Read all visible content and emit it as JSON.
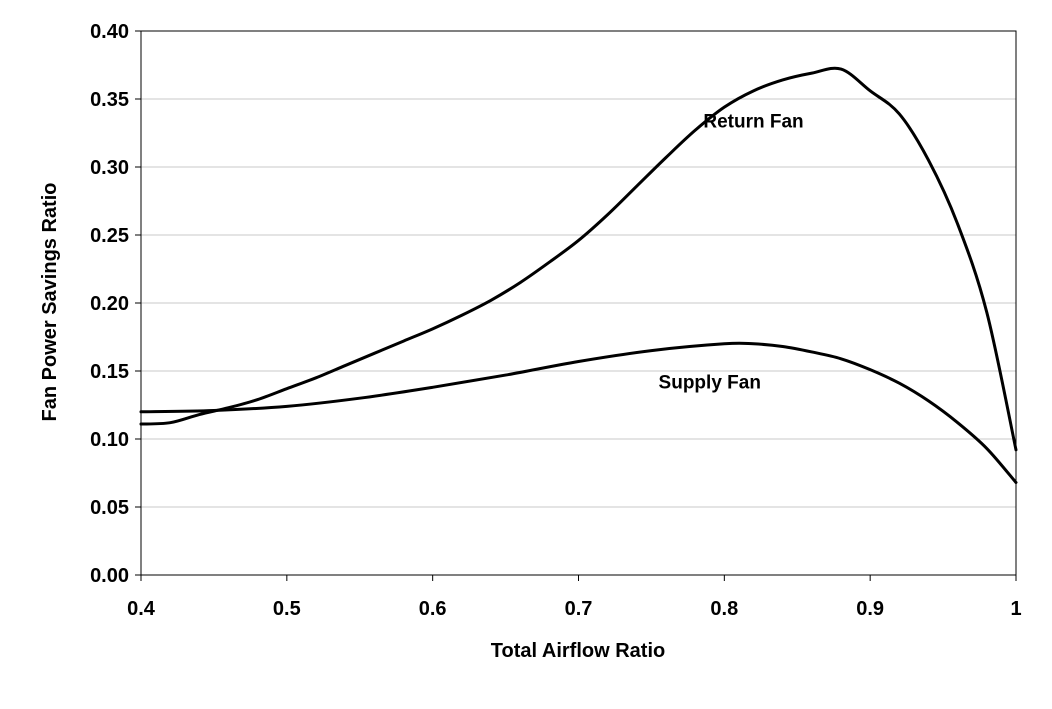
{
  "chart_data": {
    "type": "line",
    "title": "",
    "xlabel": "Total Airflow Ratio",
    "ylabel": "Fan Power Savings Ratio",
    "xlim": [
      0.4,
      1.0
    ],
    "ylim": [
      0.0,
      0.4
    ],
    "grid": true,
    "legend": "none",
    "x_ticks": [
      {
        "value": 0.4,
        "label": "0.4"
      },
      {
        "value": 0.5,
        "label": "0.5"
      },
      {
        "value": 0.6,
        "label": "0.6"
      },
      {
        "value": 0.7,
        "label": "0.7"
      },
      {
        "value": 0.8,
        "label": "0.8"
      },
      {
        "value": 0.9,
        "label": "0.9"
      },
      {
        "value": 1.0,
        "label": "1"
      }
    ],
    "y_ticks": [
      {
        "value": 0.0,
        "label": "0.00"
      },
      {
        "value": 0.05,
        "label": "0.05"
      },
      {
        "value": 0.1,
        "label": "0.10"
      },
      {
        "value": 0.15,
        "label": "0.15"
      },
      {
        "value": 0.2,
        "label": "0.20"
      },
      {
        "value": 0.25,
        "label": "0.25"
      },
      {
        "value": 0.3,
        "label": "0.30"
      },
      {
        "value": 0.35,
        "label": "0.35"
      },
      {
        "value": 0.4,
        "label": "0.40"
      }
    ],
    "series": [
      {
        "name": "Return Fan",
        "color": "#000000",
        "points": [
          [
            0.4,
            0.111
          ],
          [
            0.42,
            0.112
          ],
          [
            0.44,
            0.118
          ],
          [
            0.46,
            0.123
          ],
          [
            0.48,
            0.129
          ],
          [
            0.5,
            0.137
          ],
          [
            0.52,
            0.145
          ],
          [
            0.54,
            0.154
          ],
          [
            0.56,
            0.163
          ],
          [
            0.58,
            0.172
          ],
          [
            0.6,
            0.181
          ],
          [
            0.62,
            0.191
          ],
          [
            0.64,
            0.202
          ],
          [
            0.66,
            0.215
          ],
          [
            0.68,
            0.23
          ],
          [
            0.7,
            0.246
          ],
          [
            0.72,
            0.265
          ],
          [
            0.74,
            0.286
          ],
          [
            0.76,
            0.307
          ],
          [
            0.78,
            0.327
          ],
          [
            0.8,
            0.344
          ],
          [
            0.82,
            0.356
          ],
          [
            0.84,
            0.364
          ],
          [
            0.86,
            0.369
          ],
          [
            0.88,
            0.372
          ],
          [
            0.9,
            0.356
          ],
          [
            0.92,
            0.339
          ],
          [
            0.94,
            0.305
          ],
          [
            0.96,
            0.258
          ],
          [
            0.98,
            0.193
          ],
          [
            1.0,
            0.092
          ]
        ]
      },
      {
        "name": "Supply Fan",
        "color": "#000000",
        "points": [
          [
            0.4,
            0.12
          ],
          [
            0.45,
            0.121
          ],
          [
            0.5,
            0.124
          ],
          [
            0.55,
            0.13
          ],
          [
            0.6,
            0.138
          ],
          [
            0.65,
            0.147
          ],
          [
            0.7,
            0.157
          ],
          [
            0.75,
            0.165
          ],
          [
            0.8,
            0.17
          ],
          [
            0.82,
            0.17
          ],
          [
            0.84,
            0.168
          ],
          [
            0.86,
            0.164
          ],
          [
            0.88,
            0.159
          ],
          [
            0.9,
            0.151
          ],
          [
            0.92,
            0.141
          ],
          [
            0.94,
            0.128
          ],
          [
            0.96,
            0.112
          ],
          [
            0.98,
            0.093
          ],
          [
            1.0,
            0.068
          ]
        ]
      }
    ],
    "annotations": [
      {
        "text": "Return Fan",
        "x": 0.82,
        "y": 0.329
      },
      {
        "text": "Supply Fan",
        "x": 0.79,
        "y": 0.137
      }
    ]
  }
}
